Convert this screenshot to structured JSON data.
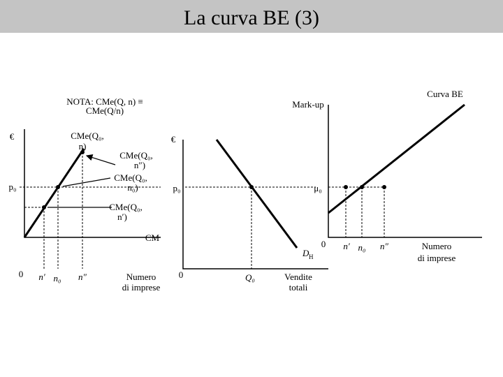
{
  "header": {
    "title": "La curva BE (3)"
  },
  "note": [
    "NOTA: CMe(Q, n) ≡",
    "CMe(Q/n)"
  ],
  "left_panel": {
    "y_axis": "€",
    "price": "p₀",
    "curve": "CM",
    "labels": [
      [
        "CMe(Q₀,",
        "n)"
      ],
      [
        "CMe(Q₀,",
        "n″)"
      ],
      [
        "CMe(Q₀,",
        "n₀)"
      ],
      [
        "CMe(Q₀,",
        "n′)"
      ]
    ],
    "origin": "0",
    "x_ticks": [
      "n′",
      "n₀",
      "n″"
    ],
    "x_axis": [
      "Numero",
      "di imprese"
    ]
  },
  "middle_panel": {
    "y_axis": "€",
    "price": "p₀",
    "origin": "0",
    "demand": "D",
    "demand_sub": "H",
    "x_tick": "Q₀",
    "x_axis": [
      "Vendite",
      "totali"
    ]
  },
  "right_panel": {
    "curve": "Curva BE",
    "y_axis": "Mark-up",
    "markup": "μ₀",
    "origin": "0",
    "x_ticks": [
      "n′",
      "n₀",
      "n″"
    ],
    "x_axis": [
      "Numero",
      "di imprese"
    ]
  }
}
